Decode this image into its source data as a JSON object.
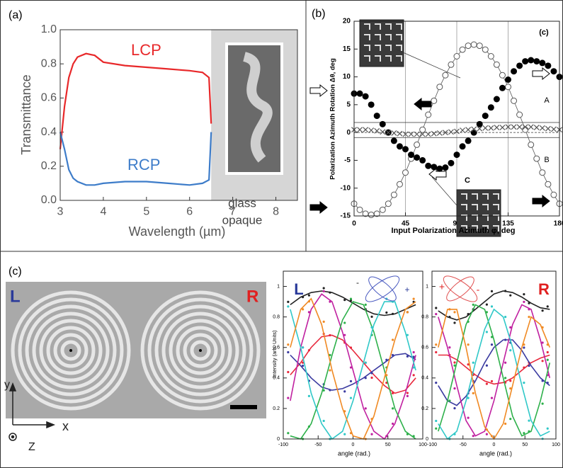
{
  "chart_data": [
    {
      "type": "line",
      "panel_label": "(a)",
      "x_label": "Wavelength (µm)",
      "y_label": "Transmittance",
      "x": [
        3.0,
        3.1,
        3.2,
        3.3,
        3.4,
        3.6,
        3.8,
        4.0,
        4.5,
        5.0,
        5.5,
        6.0,
        6.3,
        6.45,
        6.5
      ],
      "series": [
        {
          "name": "LCP",
          "color": "#e8282a",
          "values": [
            0.3,
            0.55,
            0.72,
            0.8,
            0.84,
            0.86,
            0.85,
            0.81,
            0.79,
            0.78,
            0.77,
            0.76,
            0.75,
            0.72,
            0.45
          ]
        },
        {
          "name": "RCP",
          "color": "#3d7cc9",
          "values": [
            0.4,
            0.3,
            0.18,
            0.13,
            0.11,
            0.09,
            0.09,
            0.1,
            0.11,
            0.11,
            0.1,
            0.09,
            0.1,
            0.12,
            0.4
          ]
        }
      ],
      "opaque_region": [
        6.5,
        8.5
      ],
      "annotations": [
        "glass",
        "opaque"
      ],
      "xlim": [
        3,
        8.5
      ],
      "xticks": [
        3,
        4,
        5,
        6,
        7,
        8
      ],
      "ylim": [
        0,
        1
      ],
      "yticks": [
        {
          "value": 0,
          "label": "0.0"
        },
        0.2,
        0.4,
        0.6,
        0.8,
        {
          "value": 1,
          "label": "1.0"
        }
      ]
    },
    {
      "type": "scatter",
      "panel_label": "(b)",
      "x_label": "Input Polarization Azimuth φ, deg",
      "y_label": "Polarization Azimuth Rotation Δθ, deg",
      "x": [
        0,
        5,
        10,
        15,
        20,
        25,
        30,
        35,
        40,
        45,
        50,
        55,
        60,
        65,
        70,
        75,
        80,
        85,
        90,
        95,
        100,
        105,
        110,
        115,
        120,
        125,
        130,
        135,
        140,
        145,
        150,
        155,
        160,
        165,
        170,
        175,
        180
      ],
      "series": [
        {
          "marker": "open",
          "color": "#555555",
          "values": [
            -12.8,
            -13.9,
            -14.6,
            -14.8,
            -14.6,
            -13.9,
            -12.8,
            -11.2,
            -9.3,
            -7.2,
            -4.7,
            -2.2,
            0.5,
            3.2,
            5.7,
            8.2,
            10.3,
            12.2,
            13.7,
            14.9,
            15.6,
            15.8,
            15.6,
            14.9,
            13.7,
            12.2,
            10.3,
            8.2,
            5.7,
            3.2,
            0.5,
            -2.2,
            -4.7,
            -7.2,
            -9.3,
            -11.2,
            -12.8
          ]
        },
        {
          "marker": "filled",
          "color": "#000000",
          "values": [
            7,
            7,
            6.5,
            5,
            3,
            1.5,
            0,
            -1.5,
            -2.5,
            -3,
            -4,
            -4.5,
            -5,
            -6,
            -6.2,
            -6.5,
            -6.3,
            -5.5,
            -4,
            -2.5,
            -1.5,
            0,
            1.5,
            3,
            4.5,
            6,
            8,
            9.5,
            11,
            12,
            12.8,
            13,
            12.8,
            12.5,
            12,
            11,
            10
          ]
        },
        {
          "marker": "cross",
          "color": "#555555",
          "values": [
            0.5,
            0.5,
            0.5,
            0.4,
            0.3,
            0.1,
            0,
            -0.1,
            -0.2,
            -0.3,
            -0.3,
            -0.3,
            -0.3,
            -0.3,
            -0.2,
            -0.1,
            0,
            0.1,
            0.2,
            0.4,
            0.5,
            0.6,
            0.7,
            0.8,
            0.8,
            0.9,
            0.9,
            1,
            1,
            1,
            1,
            1,
            0.9,
            0.8,
            0.7,
            0.6,
            0.5
          ]
        }
      ],
      "reference_lines": [
        {
          "value": 1.8,
          "label": "A"
        },
        {
          "value": -0.9,
          "label": "B"
        }
      ],
      "annotations": [
        "(c)",
        "C"
      ],
      "grid": "x",
      "xlim": [
        0,
        180
      ],
      "xticks": [
        0,
        45,
        90,
        135,
        180
      ],
      "ylim": [
        -15,
        20
      ],
      "yticks": [
        -15,
        -10,
        -5,
        0,
        5,
        10,
        15,
        20
      ]
    },
    {
      "type": "line",
      "x_label": "angle (rad.)",
      "y_label": "Intensity (arb. Units)",
      "annotations": [
        "L",
        "-",
        "+"
      ],
      "x": [
        -90,
        -75,
        -60,
        -45,
        -30,
        -15,
        0,
        15,
        30,
        45,
        60,
        75,
        90
      ],
      "series": [
        {
          "color": "#222222",
          "values": [
            0.88,
            0.93,
            0.96,
            0.97,
            0.96,
            0.93,
            0.89,
            0.85,
            0.82,
            0.81,
            0.82,
            0.85,
            0.88
          ]
        },
        {
          "color": "#e8283c",
          "values": [
            0.42,
            0.5,
            0.6,
            0.67,
            0.68,
            0.65,
            0.58,
            0.5,
            0.42,
            0.35,
            0.3,
            0.32,
            0.4
          ]
        },
        {
          "color": "#3a3aa0",
          "values": [
            0.55,
            0.48,
            0.4,
            0.34,
            0.32,
            0.33,
            0.36,
            0.4,
            0.45,
            0.5,
            0.55,
            0.56,
            0.52
          ]
        },
        {
          "color": "#c020a0",
          "values": [
            0.25,
            0.6,
            0.85,
            0.95,
            0.9,
            0.7,
            0.45,
            0.2,
            0.05,
            0.0,
            0.1,
            0.3,
            0.55
          ]
        },
        {
          "color": "#2db04a",
          "values": [
            0.02,
            0.0,
            0.1,
            0.3,
            0.55,
            0.78,
            0.9,
            0.88,
            0.7,
            0.45,
            0.2,
            0.05,
            0.0
          ]
        },
        {
          "color": "#30c8c8",
          "values": [
            0.85,
            0.6,
            0.3,
            0.1,
            0.0,
            0.05,
            0.25,
            0.5,
            0.75,
            0.9,
            0.9,
            0.7,
            0.45
          ]
        },
        {
          "color": "#f08a24",
          "values": [
            0.6,
            0.85,
            0.92,
            0.75,
            0.45,
            0.2,
            0.02,
            0.0,
            0.15,
            0.4,
            0.65,
            0.85,
            0.9
          ]
        }
      ],
      "xlim": [
        -100,
        100
      ],
      "xticks": [
        -100,
        -50,
        0,
        50,
        100
      ],
      "ylim": [
        0,
        1.1
      ],
      "yticks": [
        0,
        0.2,
        0.4,
        0.6,
        0.8,
        1
      ]
    },
    {
      "type": "line",
      "x_label": "angle (rad.)",
      "annotations": [
        "R",
        "+",
        "-"
      ],
      "x": [
        -90,
        -75,
        -60,
        -45,
        -30,
        -15,
        0,
        15,
        30,
        45,
        60,
        75,
        90
      ],
      "series": [
        {
          "color": "#222222",
          "values": [
            0.84,
            0.8,
            0.78,
            0.8,
            0.85,
            0.9,
            0.95,
            0.97,
            0.96,
            0.93,
            0.89,
            0.86,
            0.85
          ]
        },
        {
          "color": "#e8283c",
          "values": [
            0.55,
            0.55,
            0.52,
            0.47,
            0.42,
            0.38,
            0.36,
            0.37,
            0.4,
            0.45,
            0.5,
            0.53,
            0.55
          ]
        },
        {
          "color": "#3a3aa0",
          "values": [
            0.35,
            0.25,
            0.22,
            0.28,
            0.38,
            0.5,
            0.6,
            0.65,
            0.65,
            0.58,
            0.48,
            0.4,
            0.35
          ]
        },
        {
          "color": "#c020a0",
          "values": [
            0.8,
            0.6,
            0.35,
            0.12,
            0.02,
            0.05,
            0.25,
            0.5,
            0.75,
            0.88,
            0.85,
            0.65,
            0.4
          ]
        },
        {
          "color": "#2db04a",
          "values": [
            0.05,
            0.25,
            0.5,
            0.75,
            0.88,
            0.85,
            0.65,
            0.4,
            0.15,
            0.02,
            0.05,
            0.25,
            0.5
          ]
        },
        {
          "color": "#30c8c8",
          "values": [
            0.1,
            0.0,
            0.05,
            0.25,
            0.5,
            0.72,
            0.85,
            0.8,
            0.6,
            0.35,
            0.12,
            0.02,
            0.05
          ]
        },
        {
          "color": "#f08a24",
          "values": [
            0.6,
            0.85,
            0.85,
            0.6,
            0.3,
            0.08,
            0.0,
            0.1,
            0.35,
            0.6,
            0.8,
            0.75,
            0.6
          ]
        }
      ],
      "xlim": [
        -100,
        100
      ],
      "xticks": [
        -100,
        -50,
        0,
        50,
        100
      ],
      "ylim": [
        0,
        1.1
      ],
      "yticks": [
        0,
        0.2,
        0.4,
        0.6,
        0.8,
        1
      ]
    }
  ],
  "panel_c": {
    "label": "(c)",
    "sem_image": {
      "left_label": "L",
      "right_label": "R",
      "axis_y": "y",
      "axis_x": "x",
      "axis_z": "Z"
    }
  }
}
